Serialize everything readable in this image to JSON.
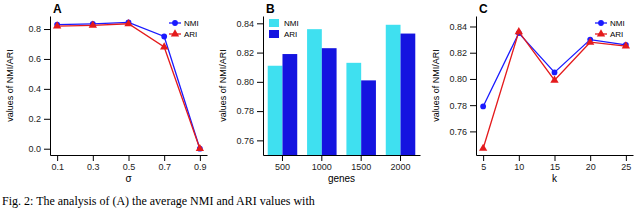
{
  "caption": "Fig. 2: The analysis of (A) the average NMI and ARI values with",
  "chart_data": [
    {
      "type": "line",
      "title": "A",
      "x_label": "σ",
      "y_label": "values of NMI/ARI",
      "x": [
        0.1,
        0.3,
        0.5,
        0.7,
        0.9
      ],
      "series": [
        {
          "name": "NMI",
          "color": "#1a1aff",
          "marker": "circle",
          "line_style": "solid",
          "values": [
            0.83,
            0.835,
            0.845,
            0.75,
            0.0
          ]
        },
        {
          "name": "ARI",
          "color": "#e41a1c",
          "marker": "triangle",
          "line_style": "solid",
          "values": [
            0.82,
            0.825,
            0.835,
            0.68,
            0.0
          ]
        }
      ],
      "xlim": [
        0.06,
        0.94
      ],
      "xticks": [
        0.1,
        0.3,
        0.5,
        0.7,
        0.9
      ],
      "ylim": [
        -0.042,
        0.887
      ],
      "yticks": [
        {
          "value": 0,
          "label": "0.0"
        },
        0.2,
        0.4,
        0.6,
        0.8
      ],
      "grid": false,
      "legend": "top-right"
    },
    {
      "type": "bar",
      "title": "B",
      "x_label": "genes",
      "y_label": "values of NMI/ARI",
      "categories": [
        "500",
        "1000",
        "1500",
        "2000"
      ],
      "series": [
        {
          "name": "NMI",
          "color": "#3fe0f0",
          "values": [
            0.811,
            0.836,
            0.813,
            0.839
          ]
        },
        {
          "name": "ARI",
          "color": "#1414e0",
          "values": [
            0.819,
            0.823,
            0.801,
            0.833
          ]
        }
      ],
      "ylim": [
        0.75,
        0.845
      ],
      "yticks": [
        0.76,
        0.78,
        {
          "value": 0.8,
          "label": "0.80"
        },
        0.82,
        0.84
      ],
      "grid": false,
      "legend": "top-left"
    },
    {
      "type": "line",
      "title": "C",
      "x_label": "k",
      "y_label": "values of NMI/ARI",
      "x": [
        5,
        10,
        15,
        20,
        25
      ],
      "series": [
        {
          "name": "NMI",
          "color": "#1a1aff",
          "marker": "circle",
          "line_style": "solid",
          "values": [
            0.779,
            0.835,
            0.805,
            0.83,
            0.826
          ]
        },
        {
          "name": "ARI",
          "color": "#e41a1c",
          "marker": "triangle",
          "line_style": "solid",
          "values": [
            0.747,
            0.836,
            0.799,
            0.828,
            0.825
          ]
        }
      ],
      "xlim": [
        4,
        26
      ],
      "xticks": [
        5,
        10,
        15,
        20,
        25
      ],
      "ylim": [
        0.742,
        0.848
      ],
      "yticks": [
        0.76,
        0.78,
        {
          "value": 0.8,
          "label": "0.80"
        },
        0.82,
        0.84
      ],
      "grid": false,
      "legend": "top-right"
    }
  ]
}
